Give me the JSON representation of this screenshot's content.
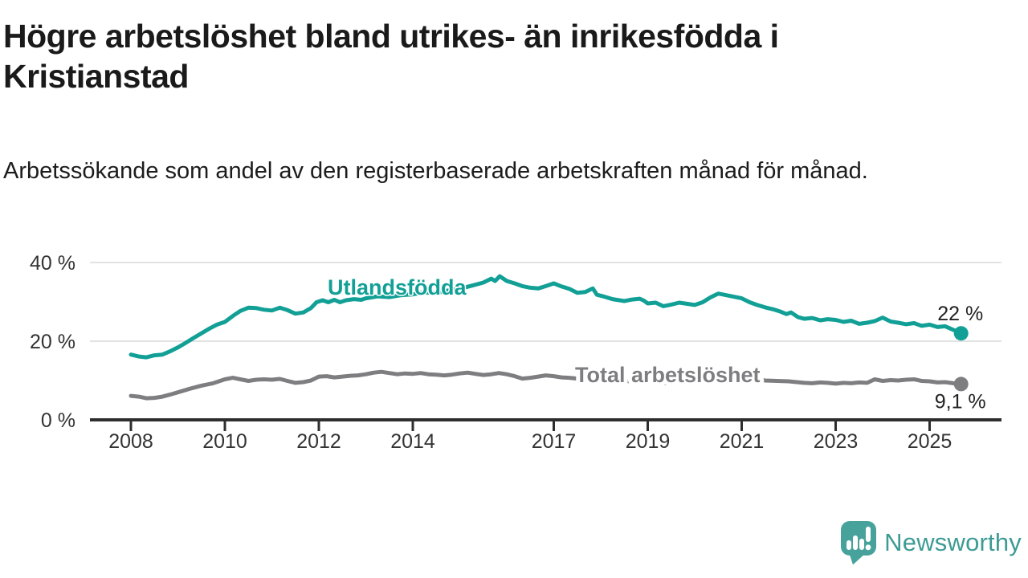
{
  "header": {
    "title": "Högre arbetslöshet bland utrikes- än inrikesfödda i Kristianstad",
    "subtitle": "Arbetssökande som andel av den registerbaserade arbetskraften månad för månad."
  },
  "footer": {
    "brand": "Newsworthy"
  },
  "colors": {
    "accent_teal": "#12a096",
    "series_gray": "#7e7e81",
    "logo_teal": "#47a29b",
    "text_dark": "#1a1a1a",
    "axis_text": "#333333",
    "gridline": "#d9d9d9",
    "axis_line": "#2e2e2e"
  },
  "chart_data": {
    "type": "line",
    "title": "Högre arbetslöshet bland utrikes- än inrikesfödda i Kristianstad",
    "xlabel": "",
    "ylabel": "",
    "grid": "horizontal-only",
    "legend_position": "inline-labels",
    "ylim": [
      0,
      44
    ],
    "xlim": [
      2007.1,
      2026.4
    ],
    "x_tick_years": [
      2008,
      2010,
      2012,
      2014,
      2017,
      2019,
      2021,
      2023,
      2025
    ],
    "x_tick_labels": [
      "2008",
      "2010",
      "2012",
      "2014",
      "2017",
      "2019",
      "2021",
      "2023",
      "2025"
    ],
    "y_tick_values": [
      0,
      20,
      40
    ],
    "y_tick_labels": [
      "0 %",
      "20 %",
      "40 %"
    ],
    "series": [
      {
        "name": "Utlandsfödda",
        "color": "#12a096",
        "end_label": "22 %",
        "end_value": 22.0,
        "x": [
          2008.0,
          2008.17,
          2008.33,
          2008.5,
          2008.67,
          2008.83,
          2009.0,
          2009.17,
          2009.33,
          2009.5,
          2009.67,
          2009.83,
          2010.0,
          2010.17,
          2010.33,
          2010.5,
          2010.67,
          2010.83,
          2011.0,
          2011.17,
          2011.33,
          2011.5,
          2011.67,
          2011.83,
          2011.95,
          2012.08,
          2012.2,
          2012.33,
          2012.45,
          2012.58,
          2012.75,
          2012.9,
          2013.0,
          2013.25,
          2013.5,
          2013.75,
          2014.0,
          2014.25,
          2014.5,
          2014.75,
          2015.0,
          2015.25,
          2015.5,
          2015.67,
          2015.75,
          2015.85,
          2016.0,
          2016.17,
          2016.33,
          2016.5,
          2016.67,
          2016.83,
          2017.0,
          2017.17,
          2017.33,
          2017.5,
          2017.67,
          2017.83,
          2017.92,
          2018.08,
          2018.25,
          2018.5,
          2018.67,
          2018.83,
          2018.92,
          2019.0,
          2019.17,
          2019.33,
          2019.5,
          2019.67,
          2019.83,
          2020.0,
          2020.17,
          2020.33,
          2020.5,
          2020.67,
          2020.83,
          2021.0,
          2021.17,
          2021.33,
          2021.5,
          2021.67,
          2021.83,
          2021.95,
          2022.05,
          2022.2,
          2022.33,
          2022.5,
          2022.67,
          2022.83,
          2023.0,
          2023.17,
          2023.33,
          2023.5,
          2023.67,
          2023.83,
          2024.0,
          2024.17,
          2024.33,
          2024.5,
          2024.67,
          2024.83,
          2025.0,
          2025.17,
          2025.33,
          2025.5,
          2025.67
        ],
        "values": [
          16.6,
          16.1,
          15.9,
          16.4,
          16.6,
          17.4,
          18.4,
          19.6,
          20.8,
          22.0,
          23.2,
          24.2,
          24.9,
          26.4,
          27.7,
          28.5,
          28.4,
          28.0,
          27.8,
          28.5,
          27.9,
          27.0,
          27.3,
          28.4,
          29.9,
          30.4,
          29.9,
          30.5,
          29.9,
          30.4,
          30.7,
          30.5,
          30.9,
          31.4,
          31.2,
          31.7,
          31.9,
          32.4,
          32.2,
          32.9,
          33.3,
          34.1,
          34.9,
          35.9,
          35.3,
          36.5,
          35.3,
          34.7,
          34.0,
          33.6,
          33.4,
          34.0,
          34.7,
          33.9,
          33.3,
          32.3,
          32.5,
          33.4,
          31.8,
          31.3,
          30.7,
          30.2,
          30.6,
          30.8,
          30.3,
          29.6,
          29.8,
          28.9,
          29.3,
          29.8,
          29.5,
          29.2,
          29.9,
          31.1,
          32.1,
          31.7,
          31.3,
          30.9,
          29.9,
          29.2,
          28.6,
          28.1,
          27.5,
          26.9,
          27.3,
          26.1,
          25.7,
          25.9,
          25.3,
          25.6,
          25.4,
          24.9,
          25.2,
          24.4,
          24.7,
          25.1,
          26.0,
          25.0,
          24.7,
          24.3,
          24.6,
          23.9,
          24.2,
          23.6,
          23.8,
          22.9,
          22.0
        ]
      },
      {
        "name": "Total arbetslöshet",
        "color": "#7e7e81",
        "end_label": "9,1 %",
        "end_value": 9.1,
        "x": [
          2008.0,
          2008.17,
          2008.33,
          2008.5,
          2008.67,
          2008.83,
          2009.0,
          2009.25,
          2009.5,
          2009.75,
          2010.0,
          2010.17,
          2010.33,
          2010.5,
          2010.67,
          2010.83,
          2011.0,
          2011.17,
          2011.33,
          2011.5,
          2011.67,
          2011.83,
          2012.0,
          2012.17,
          2012.33,
          2012.5,
          2012.67,
          2012.83,
          2013.0,
          2013.17,
          2013.33,
          2013.5,
          2013.67,
          2013.83,
          2014.0,
          2014.17,
          2014.33,
          2014.5,
          2014.67,
          2014.83,
          2015.0,
          2015.17,
          2015.33,
          2015.5,
          2015.67,
          2015.83,
          2016.0,
          2016.17,
          2016.33,
          2016.5,
          2016.67,
          2016.83,
          2017.0,
          2017.17,
          2017.33,
          2017.5,
          2018.0,
          2018.5,
          2019.0,
          2019.5,
          2020.0,
          2020.5,
          2021.0,
          2021.5,
          2022.0,
          2022.17,
          2022.33,
          2022.5,
          2022.67,
          2022.83,
          2023.0,
          2023.17,
          2023.33,
          2023.5,
          2023.67,
          2023.83,
          2024.0,
          2024.17,
          2024.33,
          2024.5,
          2024.67,
          2024.83,
          2025.0,
          2025.17,
          2025.33,
          2025.5,
          2025.67
        ],
        "values": [
          6.1,
          5.9,
          5.5,
          5.6,
          5.9,
          6.4,
          7.0,
          7.9,
          8.7,
          9.3,
          10.3,
          10.7,
          10.3,
          9.9,
          10.2,
          10.3,
          10.2,
          10.4,
          9.9,
          9.4,
          9.6,
          10.0,
          11.0,
          11.1,
          10.8,
          11.0,
          11.2,
          11.3,
          11.6,
          12.0,
          12.2,
          11.9,
          11.6,
          11.8,
          11.7,
          11.9,
          11.6,
          11.5,
          11.3,
          11.5,
          11.8,
          12.0,
          11.7,
          11.4,
          11.6,
          11.9,
          11.6,
          11.1,
          10.5,
          10.7,
          11.0,
          11.3,
          11.1,
          10.8,
          10.7,
          10.5,
          10.2,
          9.9,
          9.5,
          9.3,
          9.8,
          11.0,
          10.6,
          10.0,
          9.8,
          9.6,
          9.4,
          9.3,
          9.5,
          9.4,
          9.2,
          9.4,
          9.3,
          9.5,
          9.4,
          10.3,
          9.9,
          10.1,
          10.0,
          10.2,
          10.3,
          9.9,
          9.8,
          9.5,
          9.6,
          9.3,
          9.1
        ]
      }
    ]
  }
}
